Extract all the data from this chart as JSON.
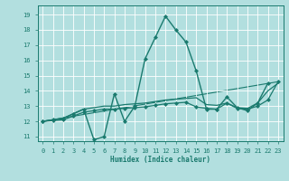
{
  "xlabel": "Humidex (Indice chaleur)",
  "bg_color": "#b2dfdf",
  "grid_color": "#d0eded",
  "line_color": "#1a7a6e",
  "xlim": [
    -0.5,
    23.5
  ],
  "ylim": [
    10.7,
    19.6
  ],
  "yticks": [
    11,
    12,
    13,
    14,
    15,
    16,
    17,
    18,
    19
  ],
  "xticks": [
    0,
    1,
    2,
    3,
    4,
    5,
    6,
    7,
    8,
    9,
    10,
    11,
    12,
    13,
    14,
    15,
    16,
    17,
    18,
    19,
    20,
    21,
    22,
    23
  ],
  "series": [
    {
      "x": [
        0,
        1,
        2,
        3,
        4,
        5,
        6,
        7,
        8,
        9,
        10,
        11,
        12,
        13,
        14,
        15,
        16,
        17,
        18,
        19,
        20,
        21,
        22
      ],
      "y": [
        12.0,
        12.1,
        12.2,
        12.5,
        12.8,
        10.8,
        11.0,
        13.8,
        12.0,
        13.0,
        16.1,
        17.5,
        18.9,
        18.0,
        17.2,
        15.3,
        12.8,
        12.8,
        13.6,
        12.9,
        12.7,
        13.2,
        14.5
      ],
      "marker": "D",
      "ms": 2.0,
      "lw": 1.0,
      "zorder": 4
    },
    {
      "x": [
        0,
        1,
        2,
        3,
        4,
        5,
        6,
        7,
        8,
        9,
        10,
        11,
        12,
        13,
        14,
        15,
        16,
        17,
        18,
        19,
        20,
        21,
        22,
        23
      ],
      "y": [
        12.0,
        12.1,
        12.2,
        12.5,
        12.8,
        12.9,
        13.0,
        13.0,
        13.1,
        13.15,
        13.2,
        13.3,
        13.4,
        13.45,
        13.5,
        13.55,
        13.1,
        13.05,
        13.2,
        12.9,
        12.85,
        13.2,
        14.0,
        14.5
      ],
      "marker": null,
      "ms": 0,
      "lw": 0.9,
      "zorder": 2
    },
    {
      "x": [
        0,
        1,
        2,
        3,
        4,
        5,
        6,
        7,
        8,
        9,
        10,
        11,
        12,
        13,
        14,
        15,
        16,
        17,
        18,
        19,
        20,
        21,
        22,
        23
      ],
      "y": [
        12.0,
        12.05,
        12.1,
        12.35,
        12.6,
        12.7,
        12.8,
        12.8,
        12.85,
        12.9,
        12.95,
        13.05,
        13.15,
        13.2,
        13.25,
        12.95,
        12.85,
        12.8,
        13.2,
        12.85,
        12.8,
        13.0,
        13.4,
        14.6
      ],
      "marker": "D",
      "ms": 2.0,
      "lw": 0.9,
      "zorder": 3
    },
    {
      "x": [
        0,
        23
      ],
      "y": [
        12.0,
        14.6
      ],
      "marker": null,
      "ms": 0,
      "lw": 0.8,
      "zorder": 1
    }
  ]
}
